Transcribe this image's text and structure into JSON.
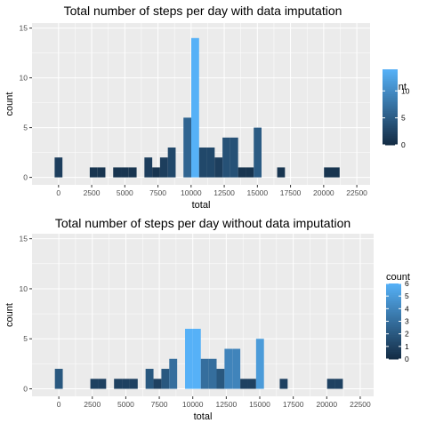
{
  "chart_data": [
    {
      "type": "bar",
      "title": "Total number of steps per day with data imputation",
      "xlabel": "total",
      "ylabel": "count",
      "xlim": [
        -2000,
        23500
      ],
      "ylim": [
        -0.75,
        15.5
      ],
      "x_ticks": [
        0,
        2500,
        5000,
        7500,
        10000,
        12500,
        15000,
        17500,
        20000,
        22500
      ],
      "x_tick_labels": [
        "0",
        "2500",
        "5000",
        "7500",
        "10000",
        "12500",
        "15000",
        "17500",
        "20000",
        "22500"
      ],
      "y_ticks": [
        0,
        5,
        10,
        15
      ],
      "y_tick_labels": [
        "0",
        "5",
        "10",
        "15"
      ],
      "bin_width": 589,
      "bins": [
        {
          "x": 0,
          "count": 2
        },
        {
          "x": 2650,
          "count": 1
        },
        {
          "x": 3239,
          "count": 1
        },
        {
          "x": 4417,
          "count": 1
        },
        {
          "x": 5006,
          "count": 1
        },
        {
          "x": 5595,
          "count": 1
        },
        {
          "x": 6773,
          "count": 2
        },
        {
          "x": 7362,
          "count": 1
        },
        {
          "x": 7951,
          "count": 2
        },
        {
          "x": 8540,
          "count": 3
        },
        {
          "x": 9718,
          "count": 6
        },
        {
          "x": 10307,
          "count": 14
        },
        {
          "x": 10896,
          "count": 3
        },
        {
          "x": 11485,
          "count": 3
        },
        {
          "x": 12074,
          "count": 2
        },
        {
          "x": 12663,
          "count": 4
        },
        {
          "x": 13252,
          "count": 4
        },
        {
          "x": 13841,
          "count": 1
        },
        {
          "x": 14430,
          "count": 1
        },
        {
          "x": 15019,
          "count": 5
        },
        {
          "x": 16786,
          "count": 1
        },
        {
          "x": 20320,
          "count": 1
        },
        {
          "x": 20909,
          "count": 1
        }
      ],
      "legend": {
        "title": "count",
        "placement": "right",
        "range": [
          0,
          14
        ],
        "ticks": [
          0,
          5,
          10
        ],
        "tick_labels": [
          "0",
          "5",
          "10"
        ]
      },
      "colors": {
        "low": "#132B43",
        "high": "#56B1F7",
        "panel": "#EBEBEB",
        "grid": "#FFFFFF"
      }
    },
    {
      "type": "bar",
      "title": "Total number of steps per day without data imputation",
      "xlabel": "total",
      "ylabel": "count",
      "xlim": [
        -2000,
        23500
      ],
      "ylim": [
        -0.75,
        15.5
      ],
      "x_ticks": [
        0,
        2500,
        5000,
        7500,
        10000,
        12500,
        15000,
        17500,
        20000,
        22500
      ],
      "x_tick_labels": [
        "0",
        "2500",
        "5000",
        "7500",
        "10000",
        "12500",
        "15000",
        "17500",
        "20000",
        "22500"
      ],
      "y_ticks": [
        0,
        5,
        10,
        15
      ],
      "y_tick_labels": [
        "0",
        "5",
        "10",
        "15"
      ],
      "bin_width": 589,
      "bins": [
        {
          "x": 0,
          "count": 2
        },
        {
          "x": 2650,
          "count": 1
        },
        {
          "x": 3239,
          "count": 1
        },
        {
          "x": 4417,
          "count": 1
        },
        {
          "x": 5006,
          "count": 1
        },
        {
          "x": 5595,
          "count": 1
        },
        {
          "x": 6773,
          "count": 2
        },
        {
          "x": 7362,
          "count": 1
        },
        {
          "x": 7951,
          "count": 2
        },
        {
          "x": 8540,
          "count": 3
        },
        {
          "x": 9718,
          "count": 6
        },
        {
          "x": 10307,
          "count": 6
        },
        {
          "x": 10896,
          "count": 3
        },
        {
          "x": 11485,
          "count": 3
        },
        {
          "x": 12074,
          "count": 2
        },
        {
          "x": 12663,
          "count": 4
        },
        {
          "x": 13252,
          "count": 4
        },
        {
          "x": 13841,
          "count": 1
        },
        {
          "x": 14430,
          "count": 1
        },
        {
          "x": 15019,
          "count": 5
        },
        {
          "x": 16786,
          "count": 1
        },
        {
          "x": 20320,
          "count": 1
        },
        {
          "x": 20909,
          "count": 1
        }
      ],
      "legend": {
        "title": "count",
        "placement": "right",
        "range": [
          0,
          6
        ],
        "ticks": [
          0,
          1,
          2,
          3,
          4,
          5,
          6
        ],
        "tick_labels": [
          "0",
          "1",
          "2",
          "3",
          "4",
          "5",
          "6"
        ]
      },
      "colors": {
        "low": "#132B43",
        "high": "#56B1F7",
        "panel": "#EBEBEB",
        "grid": "#FFFFFF"
      }
    }
  ]
}
